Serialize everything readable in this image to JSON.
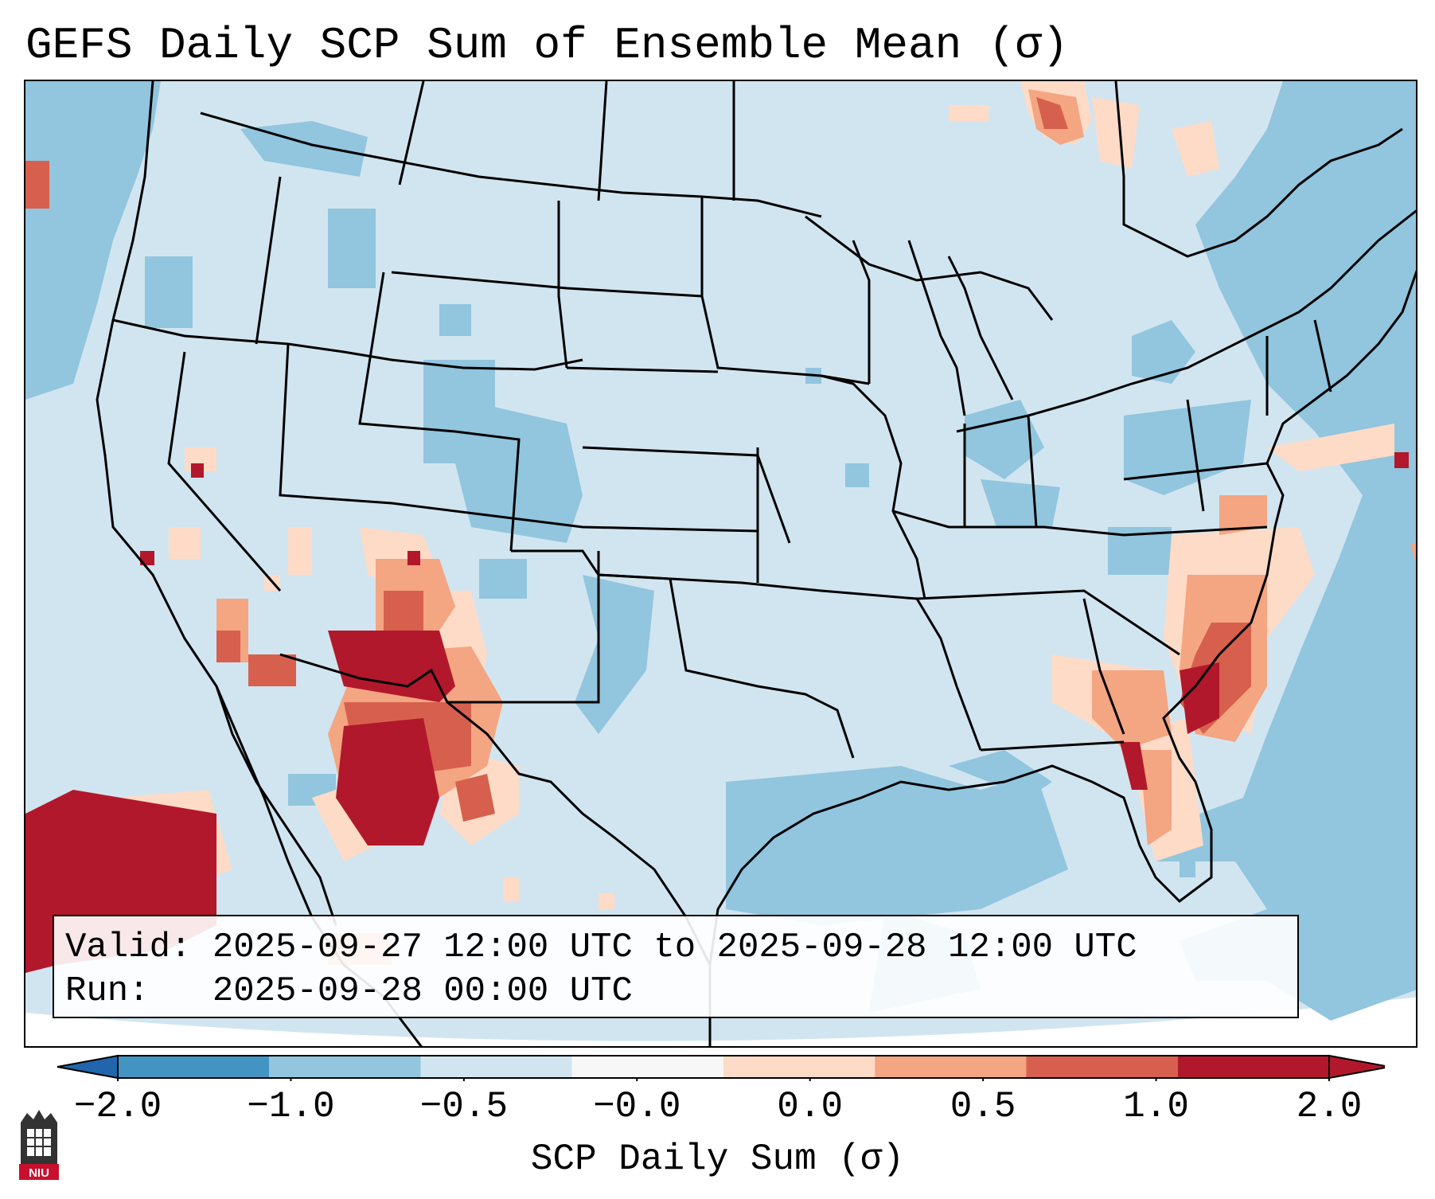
{
  "title": "GEFS Daily SCP Sum of Ensemble Mean (σ)",
  "legend": {
    "valid_line": "Valid: 2025-09-27 12:00 UTC to 2025-09-28 12:00 UTC",
    "run_line": "Run:   2025-09-28 00:00 UTC"
  },
  "colorbar": {
    "label": "SCP Daily Sum (σ)",
    "tick_labels": [
      "−2.0",
      "−1.0",
      "−0.5",
      "−0.0",
      "0.0",
      "0.5",
      "1.0",
      "2.0"
    ],
    "colors": [
      "#4393c3",
      "#92c5de",
      "#d1e5f0",
      "#f7f7f7",
      "#fddbc7",
      "#f4a582",
      "#d6604d",
      "#b2182b"
    ],
    "extend_low_color": "#2166ac",
    "extend_high_color": "#b2182b"
  },
  "map": {
    "region": "Continental United States",
    "field_colors": {
      "background": "#d1e5f0",
      "negative": "#92c5de",
      "weak_positive": "#fddbc7",
      "positive": "#f4a582",
      "strong_positive": "#d6604d",
      "max_positive": "#b2182b"
    }
  },
  "logo": {
    "text": "NIU"
  }
}
